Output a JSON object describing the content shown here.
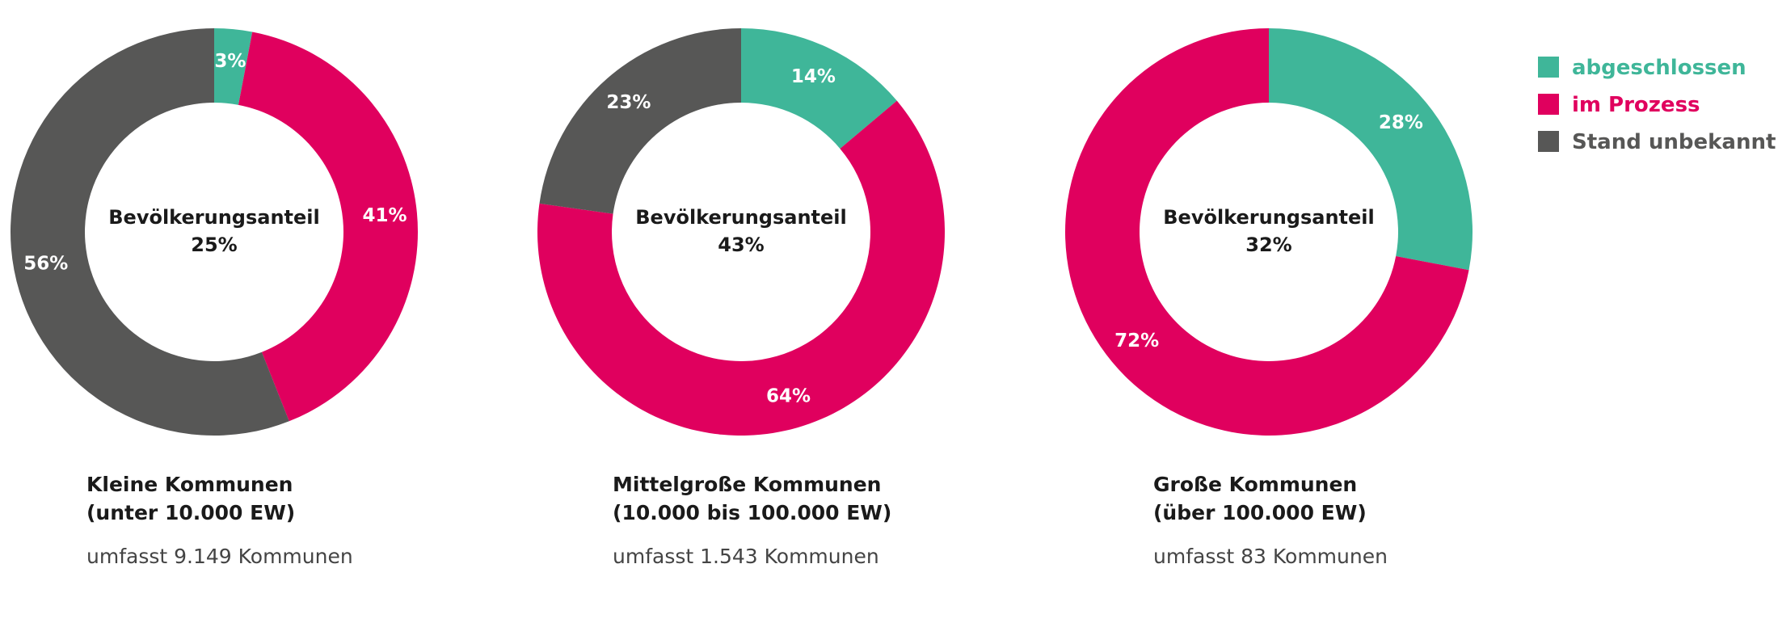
{
  "chart_data": {
    "type": "pie",
    "style": "donut",
    "legend_position": "top-right",
    "categories": [
      "abgeschlossen",
      "im Prozess",
      "Stand unbekannt"
    ],
    "colors": {
      "abgeschlossen": "#3fb699",
      "im Prozess": "#e0005e",
      "Stand unbekannt": "#575756"
    },
    "legend": [
      {
        "label": "abgeschlossen",
        "color": "#3fb699"
      },
      {
        "label": "im Prozess",
        "color": "#e0005e"
      },
      {
        "label": "Stand unbekannt",
        "color": "#575756"
      }
    ],
    "charts": [
      {
        "id": "klein",
        "center_title": "Bevölkerungsanteil",
        "center_value": "25%",
        "title_line1": "Kleine Kommunen",
        "title_line2": "(unter 10.000 EW)",
        "subtitle": "umfasst 9.149 Kommunen",
        "slices": [
          {
            "category": "abgeschlossen",
            "value": 3,
            "label": "3%"
          },
          {
            "category": "im Prozess",
            "value": 41,
            "label": "41%"
          },
          {
            "category": "Stand unbekannt",
            "value": 56,
            "label": "56%"
          }
        ]
      },
      {
        "id": "mittel",
        "center_title": "Bevölkerungsanteil",
        "center_value": "43%",
        "title_line1": "Mittelgroße Kommunen",
        "title_line2": "(10.000 bis 100.000 EW)",
        "subtitle": "umfasst 1.543 Kommunen",
        "slices": [
          {
            "category": "abgeschlossen",
            "value": 14,
            "label": "14%"
          },
          {
            "category": "im Prozess",
            "value": 64,
            "label": "64%"
          },
          {
            "category": "Stand unbekannt",
            "value": 23,
            "label": "23%"
          }
        ]
      },
      {
        "id": "gross",
        "center_title": "Bevölkerungsanteil",
        "center_value": "32%",
        "title_line1": "Große Kommunen",
        "title_line2": "(über 100.000 EW)",
        "subtitle": "umfasst 83 Kommunen",
        "slices": [
          {
            "category": "abgeschlossen",
            "value": 28,
            "label": "28%"
          },
          {
            "category": "im Prozess",
            "value": 72,
            "label": "72%"
          }
        ]
      }
    ]
  }
}
